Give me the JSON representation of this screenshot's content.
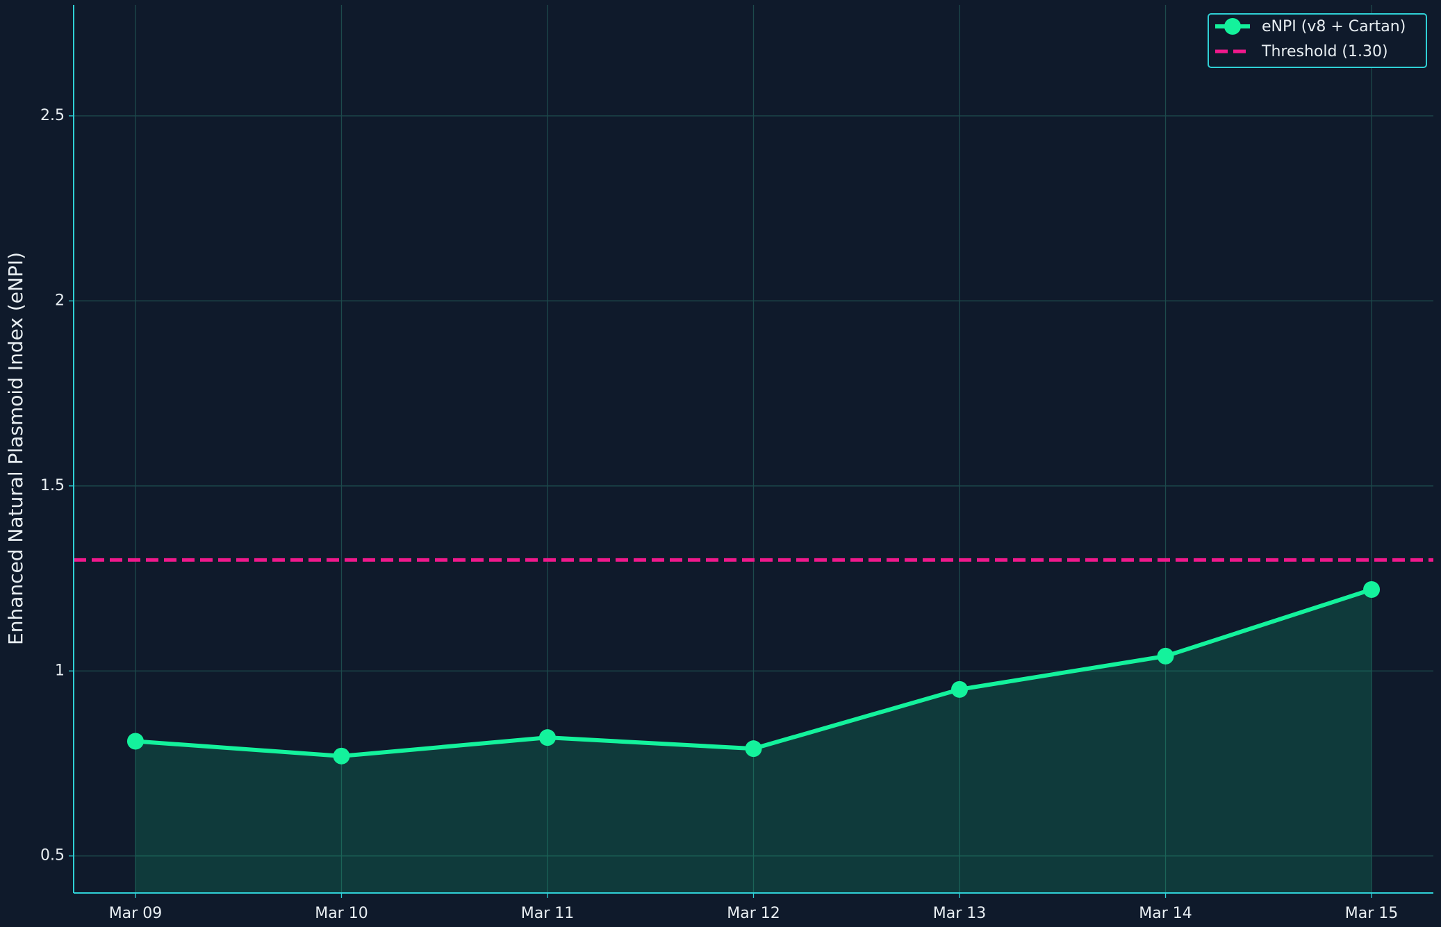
{
  "chart_data": {
    "type": "line",
    "ylabel": "Enhanced Natural Plasmoid Index (eNPI)",
    "categories": [
      "Mar 09",
      "Mar 10",
      "Mar 11",
      "Mar 12",
      "Mar 13",
      "Mar 14",
      "Mar 15"
    ],
    "series": [
      {
        "name": "eNPI (v8 + Cartan)",
        "color": "#14f29c",
        "values": [
          0.81,
          0.77,
          0.82,
          0.79,
          0.95,
          1.04,
          1.22
        ]
      }
    ],
    "threshold": {
      "name": "Threshold (1.30)",
      "value": 1.3,
      "color": "#f0198c"
    },
    "fill": true,
    "ylim": [
      0.4,
      2.8
    ],
    "yticks": [
      0.5,
      1.0,
      1.5,
      2.0,
      2.5
    ],
    "grid": true,
    "legend": "upper right"
  }
}
